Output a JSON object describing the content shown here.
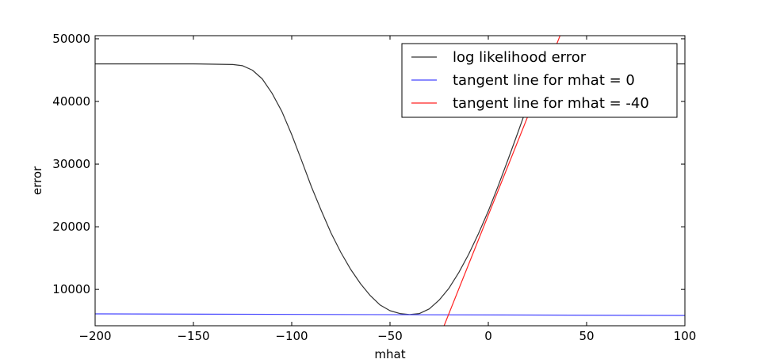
{
  "chart_data": {
    "type": "line",
    "xlabel": "mhat",
    "ylabel": "error",
    "xlim": [
      -200,
      100
    ],
    "ylim": [
      4200,
      50500
    ],
    "xticks": [
      -200,
      -150,
      -100,
      -50,
      0,
      50,
      100
    ],
    "xtick_labels": [
      "−200",
      "−150",
      "−100",
      "−50",
      "0",
      "50",
      "100"
    ],
    "yticks": [
      10000,
      20000,
      30000,
      40000,
      50000
    ],
    "ytick_labels": [
      "10000",
      "20000",
      "30000",
      "40000",
      "50000"
    ],
    "grid": false,
    "legend_position": "top-right",
    "series": [
      {
        "name": "log likelihood error",
        "color": "#333333",
        "x": [
          -200,
          -150,
          -130,
          -125,
          -120,
          -115,
          -110,
          -105,
          -100,
          -95,
          -90,
          -85,
          -80,
          -75,
          -70,
          -65,
          -60,
          -55,
          -50,
          -45,
          -40,
          -35,
          -30,
          -25,
          -20,
          -15,
          -10,
          -5,
          0,
          5,
          10,
          15,
          20,
          25,
          30,
          35,
          40,
          50,
          60,
          70,
          80,
          90,
          100
        ],
        "y": [
          46000,
          46000,
          45900,
          45700,
          45000,
          43600,
          41300,
          38400,
          34700,
          30600,
          26400,
          22600,
          19000,
          15900,
          13200,
          10900,
          9000,
          7500,
          6600,
          6150,
          6000,
          6150,
          6900,
          8300,
          10200,
          12700,
          15600,
          18900,
          22500,
          26500,
          30700,
          35000,
          39400,
          43500,
          46000,
          46000,
          46000,
          46000,
          46000,
          46000,
          46000,
          46000,
          46000
        ]
      },
      {
        "name": "tangent line for mhat = 0",
        "color": "#4444ff",
        "x": [
          -200,
          100
        ],
        "y": [
          6100,
          5850
        ]
      },
      {
        "name": "tangent line for mhat = -40",
        "color": "#ff2222",
        "x": [
          -22.5,
          36.5
        ],
        "y": [
          4200,
          50500
        ]
      }
    ]
  }
}
